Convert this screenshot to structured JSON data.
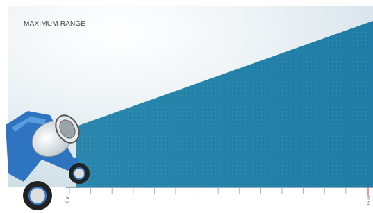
{
  "header": {
    "title": "MAXIMUM RANGE"
  },
  "axis": {
    "start_label": "0 m",
    "end_label": "15 m"
  }
}
